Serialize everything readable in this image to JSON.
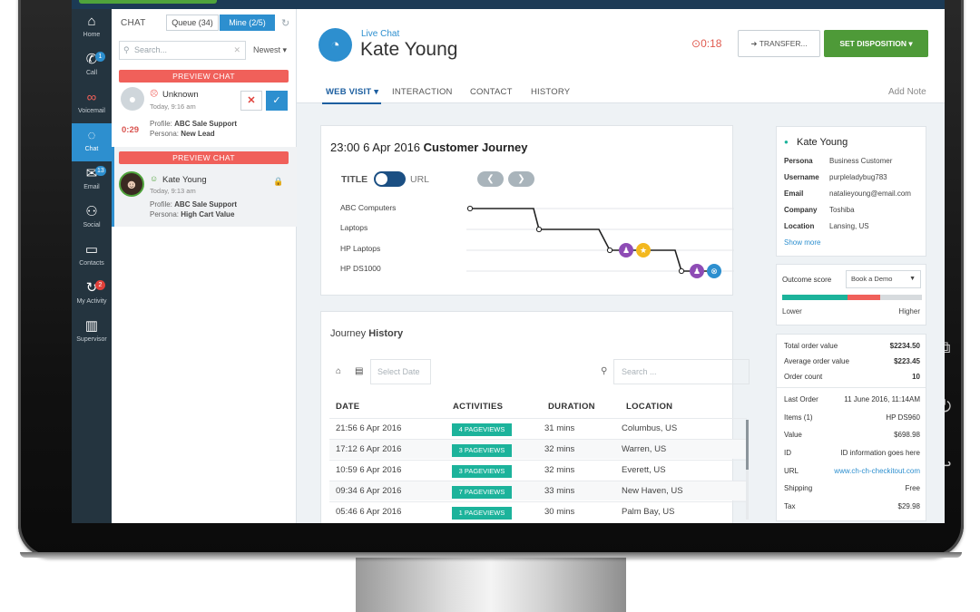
{
  "nav": [
    {
      "key": "home",
      "label": "Home",
      "icon": "home-icon",
      "glyph": "⌂",
      "badge": ""
    },
    {
      "key": "call",
      "label": "Call",
      "icon": "phone-icon",
      "glyph": "✆",
      "badge": "1"
    },
    {
      "key": "voicemail",
      "label": "Voicemail",
      "icon": "voicemail-icon",
      "glyph": "∞",
      "badge": ""
    },
    {
      "key": "chat",
      "label": "Chat",
      "icon": "chat-icon",
      "glyph": "✉",
      "badge": ""
    },
    {
      "key": "email",
      "label": "Email",
      "icon": "email-icon",
      "glyph": "✉",
      "badge": "13"
    },
    {
      "key": "social",
      "label": "Social",
      "icon": "social-icon",
      "glyph": "⚇",
      "badge": ""
    },
    {
      "key": "contacts",
      "label": "Contacts",
      "icon": "folder-icon",
      "glyph": "▭",
      "badge": ""
    },
    {
      "key": "myactivity",
      "label": "My Activity",
      "icon": "activity-icon",
      "glyph": "↻",
      "badge": "2"
    },
    {
      "key": "supervisor",
      "label": "Supervisor",
      "icon": "bar-chart-icon",
      "glyph": "▥",
      "badge": ""
    }
  ],
  "chat_panel": {
    "title": "CHAT",
    "queue_tab": "Queue (34)",
    "mine_tab": "Mine (2/5)",
    "search_placeholder": "Search...",
    "sort": "Newest ▾",
    "cards": [
      {
        "banner": "PREVIEW CHAT",
        "name": "Unknown",
        "time": "Today, 9:16 am",
        "timer": "0:29",
        "profile_label": "Profile:",
        "profile": "ABC Sale Support",
        "persona_label": "Persona:",
        "persona": "New Lead"
      },
      {
        "banner": "PREVIEW CHAT",
        "name": "Kate Young",
        "time": "Today, 9:13 am",
        "profile_label": "Profile:",
        "profile": "ABC Sale Support",
        "persona_label": "Persona:",
        "persona": "High Cart Value"
      }
    ]
  },
  "header": {
    "channel": "Live Chat",
    "name": "Kate Young",
    "timer": "0:18",
    "transfer": "TRANSFER...",
    "disposition": "SET DISPOSITION ▾"
  },
  "tabs": [
    "WEB VISIT ▾",
    "INTERACTION",
    "CONTACT",
    "HISTORY"
  ],
  "add_note": "Add Note",
  "journey": {
    "date": "23:00 6 Apr 2016",
    "title": "Customer Journey",
    "toggle_left": "TITLE",
    "toggle_right": "URL",
    "pages": [
      "ABC Computers",
      "Laptops",
      "HP Laptops",
      "HP DS1000"
    ],
    "colors": {
      "line": "#222222",
      "purple": "#8e4cb5",
      "yellow": "#f3b81f",
      "blue": "#2d8fcf"
    }
  },
  "history": {
    "title_light": "Journey",
    "title_bold": "History",
    "date_placeholder": "Select Date",
    "search_placeholder": "Search ...",
    "columns": [
      "DATE",
      "ACTIVITIES",
      "DURATION",
      "LOCATION"
    ],
    "rows": [
      {
        "date": "21:56 6 Apr 2016",
        "activity": "4 PAGEVIEWS",
        "duration": "31 mins",
        "location": "Columbus, US"
      },
      {
        "date": "17:12 6 Apr 2016",
        "activity": "3 PAGEVIEWS",
        "duration": "32 mins",
        "location": "Warren, US"
      },
      {
        "date": "10:59 6 Apr 2016",
        "activity": "3 PAGEVIEWS",
        "duration": "32 mins",
        "location": "Everett, US"
      },
      {
        "date": "09:34 6 Apr 2016",
        "activity": "7 PAGEVIEWS",
        "duration": "33 mins",
        "location": "New Haven, US"
      },
      {
        "date": "05:46 6 Apr 2016",
        "activity": "1 PAGEVIEWS",
        "duration": "30 mins",
        "location": "Palm Bay, US"
      }
    ]
  },
  "contact": {
    "name": "Kate Young",
    "fields": [
      {
        "label": "Persona",
        "value": "Business Customer"
      },
      {
        "label": "Username",
        "value": "purpleladybug783"
      },
      {
        "label": "Email",
        "value": "natalieyoung@email.com"
      },
      {
        "label": "Company",
        "value": "Toshiba"
      },
      {
        "label": "Location",
        "value": "Lansing, US"
      }
    ],
    "show_more": "Show more"
  },
  "outcome": {
    "label": "Outcome score",
    "select": "Book a Demo",
    "low": "Lower",
    "high": "Higher",
    "segments": [
      0.47,
      0.23,
      0.3
    ],
    "colors": [
      "#1cb39b",
      "#f0605a",
      "#d7dbde"
    ]
  },
  "orders": {
    "summary": [
      {
        "label": "Total order value",
        "value": "$2234.50"
      },
      {
        "label": "Average order value",
        "value": "$223.45"
      },
      {
        "label": "Order count",
        "value": "10"
      }
    ],
    "last": [
      {
        "label": "Last Order",
        "value": "11 June 2016, 11:14AM"
      },
      {
        "label": "Items (1)",
        "value": "HP DS960"
      },
      {
        "label": "Value",
        "value": "$698.98"
      },
      {
        "label": "ID",
        "value": "ID information goes here"
      },
      {
        "label": "URL",
        "value": "www.ch-ch-checkitout.com"
      },
      {
        "label": "Shipping",
        "value": "Free"
      },
      {
        "label": "Tax",
        "value": "$29.98"
      }
    ]
  }
}
